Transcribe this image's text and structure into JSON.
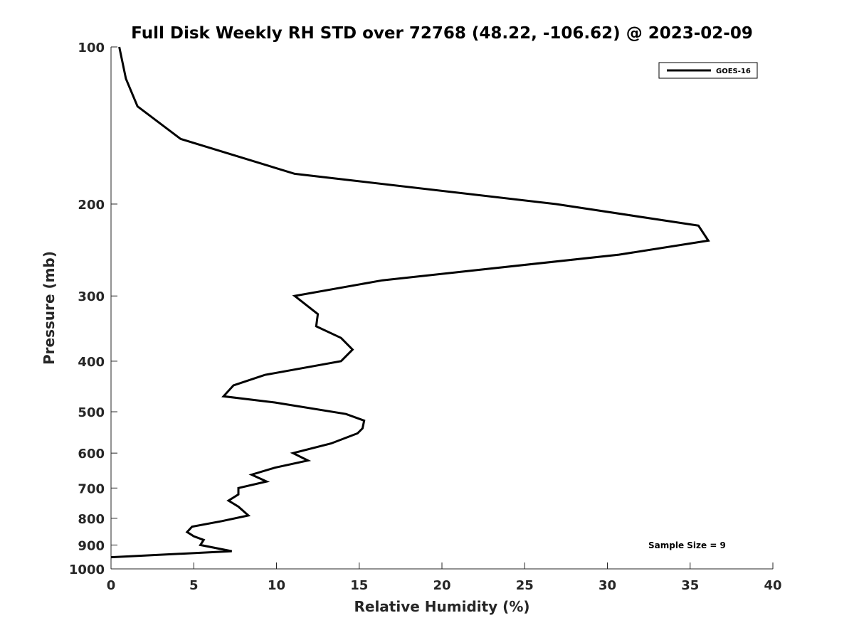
{
  "chart_data": {
    "type": "line",
    "title": "Full Disk Weekly RH STD over 72768 (48.22, -106.62) @ 2023-02-09",
    "xlabel": "Relative Humidity (%)",
    "ylabel": "Pressure (mb)",
    "xlim": [
      0,
      40
    ],
    "ylim": [
      100,
      1000
    ],
    "y_scale": "log",
    "y_reversed": true,
    "x_ticks": [
      "0",
      "5",
      "10",
      "15",
      "20",
      "25",
      "30",
      "35",
      "40"
    ],
    "y_ticks": [
      "100",
      "200",
      "300",
      "400",
      "500",
      "600",
      "700",
      "800",
      "900",
      "1000"
    ],
    "grid": false,
    "legend": {
      "placement": "top-right",
      "entries": [
        "GOES-16"
      ]
    },
    "annotation": "Sample Size = 9",
    "series": [
      {
        "name": "GOES-16",
        "color": "#000000",
        "points": [
          [
            0.5,
            100
          ],
          [
            0.9,
            115
          ],
          [
            1.6,
            130
          ],
          [
            4.2,
            150
          ],
          [
            11.1,
            175
          ],
          [
            26.9,
            200
          ],
          [
            35.5,
            220
          ],
          [
            36.1,
            235
          ],
          [
            30.7,
            250
          ],
          [
            16.4,
            280
          ],
          [
            11.1,
            300
          ],
          [
            12.5,
            325
          ],
          [
            12.4,
            343
          ],
          [
            13.9,
            361
          ],
          [
            14.6,
            380
          ],
          [
            13.9,
            400
          ],
          [
            9.3,
            425
          ],
          [
            7.4,
            445
          ],
          [
            6.8,
            467
          ],
          [
            9.9,
            480
          ],
          [
            14.2,
            505
          ],
          [
            15.3,
            520
          ],
          [
            15.2,
            538
          ],
          [
            14.9,
            550
          ],
          [
            13.3,
            575
          ],
          [
            11.0,
            600
          ],
          [
            11.9,
            620
          ],
          [
            9.9,
            640
          ],
          [
            8.5,
            660
          ],
          [
            9.4,
            680
          ],
          [
            7.7,
            700
          ],
          [
            7.7,
            720
          ],
          [
            7.1,
            740
          ],
          [
            7.7,
            760
          ],
          [
            8.3,
            790
          ],
          [
            6.7,
            810
          ],
          [
            4.9,
            830
          ],
          [
            4.6,
            850
          ],
          [
            5.0,
            866
          ],
          [
            5.6,
            880
          ],
          [
            5.4,
            900
          ],
          [
            7.3,
            925
          ],
          [
            0.0,
            950
          ]
        ]
      }
    ]
  }
}
